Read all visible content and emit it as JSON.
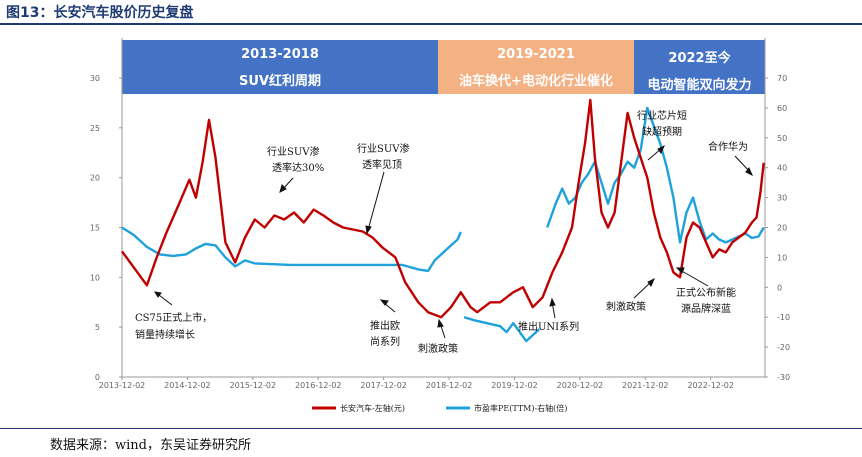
{
  "figure_title": "图13：长安汽车股价历史复盘",
  "source": "数据来源：wind，东吴证券研究所",
  "bands": [
    {
      "line1": "2013-2018",
      "line2": "SUV红利周期",
      "color": "#4472c4"
    },
    {
      "line1": "2019-2021",
      "line2": "油车换代+电动化行业催化",
      "color": "#f4b183"
    },
    {
      "line1": "2022至今",
      "line2": "电动智能双向发力",
      "color": "#4472c4"
    }
  ],
  "chart_data": {
    "type": "line",
    "x_ticks": [
      "2013-12-02",
      "2014-12-02",
      "2015-12-02",
      "2016-12-02",
      "2017-12-02",
      "2018-12-02",
      "2019-12-02",
      "2020-12-02",
      "2021-12-02",
      "2022-12-02"
    ],
    "y_left": {
      "ylim": [
        0,
        30
      ],
      "ticks": [
        "0",
        "5",
        "10",
        "15",
        "20",
        "25",
        "30"
      ]
    },
    "y_right": {
      "ylim": [
        -30,
        70
      ],
      "ticks": [
        "-30",
        "-20",
        "-10",
        "0",
        "10",
        "20",
        "30",
        "40",
        "50",
        "60",
        "70"
      ]
    },
    "series": [
      {
        "name": "长安汽车-左轴(元)",
        "color": "#c00000",
        "axis": "left",
        "points": [
          [
            2013.92,
            12.6
          ],
          [
            2014.1,
            11.0
          ],
          [
            2014.3,
            9.2
          ],
          [
            2014.45,
            12.0
          ],
          [
            2014.6,
            14.5
          ],
          [
            2014.8,
            17.5
          ],
          [
            2014.95,
            19.8
          ],
          [
            2015.05,
            18.0
          ],
          [
            2015.15,
            21.5
          ],
          [
            2015.25,
            25.8
          ],
          [
            2015.35,
            22.0
          ],
          [
            2015.5,
            13.5
          ],
          [
            2015.65,
            11.5
          ],
          [
            2015.8,
            14.0
          ],
          [
            2015.95,
            15.8
          ],
          [
            2016.1,
            15.0
          ],
          [
            2016.25,
            16.2
          ],
          [
            2016.4,
            15.8
          ],
          [
            2016.55,
            16.5
          ],
          [
            2016.7,
            15.5
          ],
          [
            2016.85,
            16.8
          ],
          [
            2017.0,
            16.2
          ],
          [
            2017.15,
            15.5
          ],
          [
            2017.3,
            15.0
          ],
          [
            2017.45,
            14.8
          ],
          [
            2017.6,
            14.6
          ],
          [
            2017.75,
            14.0
          ],
          [
            2017.9,
            13.0
          ],
          [
            2018.1,
            12.0
          ],
          [
            2018.25,
            9.5
          ],
          [
            2018.45,
            7.5
          ],
          [
            2018.6,
            6.5
          ],
          [
            2018.8,
            6.0
          ],
          [
            2018.95,
            7.0
          ],
          [
            2019.1,
            8.5
          ],
          [
            2019.25,
            7.0
          ],
          [
            2019.35,
            6.5
          ],
          [
            2019.55,
            7.5
          ],
          [
            2019.7,
            7.5
          ],
          [
            2019.9,
            8.5
          ],
          [
            2020.05,
            9.0
          ],
          [
            2020.2,
            7.0
          ],
          [
            2020.35,
            8.0
          ],
          [
            2020.5,
            10.5
          ],
          [
            2020.65,
            12.5
          ],
          [
            2020.8,
            15.0
          ],
          [
            2020.9,
            19.5
          ],
          [
            2021.0,
            23.5
          ],
          [
            2021.08,
            27.8
          ],
          [
            2021.15,
            22.0
          ],
          [
            2021.25,
            16.5
          ],
          [
            2021.35,
            15.0
          ],
          [
            2021.45,
            16.5
          ],
          [
            2021.55,
            21.5
          ],
          [
            2021.65,
            26.5
          ],
          [
            2021.75,
            24.0
          ],
          [
            2021.85,
            22.0
          ],
          [
            2021.95,
            20.0
          ],
          [
            2022.05,
            16.5
          ],
          [
            2022.15,
            14.0
          ],
          [
            2022.25,
            12.5
          ],
          [
            2022.35,
            10.5
          ],
          [
            2022.45,
            10.0
          ],
          [
            2022.55,
            14.0
          ],
          [
            2022.65,
            15.5
          ],
          [
            2022.75,
            15.0
          ],
          [
            2022.85,
            13.5
          ],
          [
            2022.95,
            12.0
          ],
          [
            2023.05,
            12.8
          ],
          [
            2023.15,
            12.5
          ],
          [
            2023.25,
            13.5
          ],
          [
            2023.35,
            14.0
          ],
          [
            2023.45,
            14.5
          ],
          [
            2023.55,
            15.5
          ],
          [
            2023.62,
            16.0
          ],
          [
            2023.68,
            18.5
          ],
          [
            2023.73,
            21.5
          ]
        ]
      },
      {
        "name": "市盈率PE(TTM)-右轴(倍)",
        "color": "#1fa2dc",
        "axis": "right",
        "points": [
          [
            2013.92,
            20
          ],
          [
            2014.1,
            17.5
          ],
          [
            2014.3,
            13.5
          ],
          [
            2014.5,
            11
          ],
          [
            2014.7,
            10.5
          ],
          [
            2014.9,
            11
          ],
          [
            2015.05,
            13
          ],
          [
            2015.2,
            14.5
          ],
          [
            2015.35,
            14
          ],
          [
            2015.5,
            10
          ],
          [
            2015.65,
            7
          ],
          [
            2015.8,
            9
          ],
          [
            2015.95,
            8
          ],
          [
            2016.5,
            7.5
          ],
          [
            2017.0,
            7.5
          ],
          [
            2017.5,
            7.5
          ],
          [
            2017.9,
            7.5
          ],
          [
            2018.2,
            7.5
          ],
          [
            2018.45,
            6
          ],
          [
            2018.6,
            5.5
          ],
          [
            2018.7,
            9
          ],
          [
            2018.85,
            12
          ],
          [
            2018.95,
            14
          ],
          [
            2019.05,
            16
          ],
          [
            2019.1,
            18.5
          ]
        ],
        "points_2": [
          [
            2019.15,
            -10
          ],
          [
            2019.3,
            -11
          ],
          [
            2019.5,
            -12
          ],
          [
            2019.7,
            -13
          ],
          [
            2019.8,
            -15
          ],
          [
            2019.9,
            -12
          ],
          [
            2020.0,
            -15
          ],
          [
            2020.1,
            -18
          ],
          [
            2020.2,
            -16
          ],
          [
            2020.3,
            -14
          ]
        ],
        "points_3": [
          [
            2020.42,
            20
          ],
          [
            2020.55,
            28
          ],
          [
            2020.65,
            33
          ],
          [
            2020.75,
            28
          ],
          [
            2020.85,
            30
          ],
          [
            2020.95,
            35
          ],
          [
            2021.05,
            38
          ],
          [
            2021.15,
            42
          ],
          [
            2021.25,
            35
          ],
          [
            2021.35,
            28
          ],
          [
            2021.45,
            35
          ],
          [
            2021.55,
            38
          ],
          [
            2021.65,
            42
          ],
          [
            2021.75,
            40
          ],
          [
            2021.85,
            46
          ],
          [
            2021.95,
            60
          ],
          [
            2022.05,
            54
          ],
          [
            2022.15,
            48
          ],
          [
            2022.25,
            40
          ],
          [
            2022.35,
            30
          ],
          [
            2022.45,
            15
          ],
          [
            2022.55,
            25
          ],
          [
            2022.65,
            30
          ],
          [
            2022.75,
            22
          ],
          [
            2022.85,
            16
          ],
          [
            2022.95,
            18
          ],
          [
            2023.05,
            16
          ],
          [
            2023.15,
            15
          ],
          [
            2023.25,
            16
          ],
          [
            2023.35,
            17
          ],
          [
            2023.45,
            18
          ],
          [
            2023.55,
            16.5
          ],
          [
            2023.65,
            17
          ],
          [
            2023.73,
            20
          ]
        ]
      }
    ],
    "annotations": [
      {
        "text": "CS75正式上市，",
        "text2": "销量持续增长"
      },
      {
        "text": "行业SUV渗",
        "text2": "透率达30%"
      },
      {
        "text": "行业SUV渗",
        "text2": "透率见顶"
      },
      {
        "text": "推出欧",
        "text2": "尚系列"
      },
      {
        "text": "刺激政策",
        "text2": ""
      },
      {
        "text": "推出UNI系列",
        "text2": ""
      },
      {
        "text": "刺激政策",
        "text2": ""
      },
      {
        "text": "行业芯片短",
        "text2": "缺超预期"
      },
      {
        "text": "合作华为",
        "text2": ""
      },
      {
        "text": "正式公布新能",
        "text2": "源品牌深蓝"
      }
    ]
  }
}
